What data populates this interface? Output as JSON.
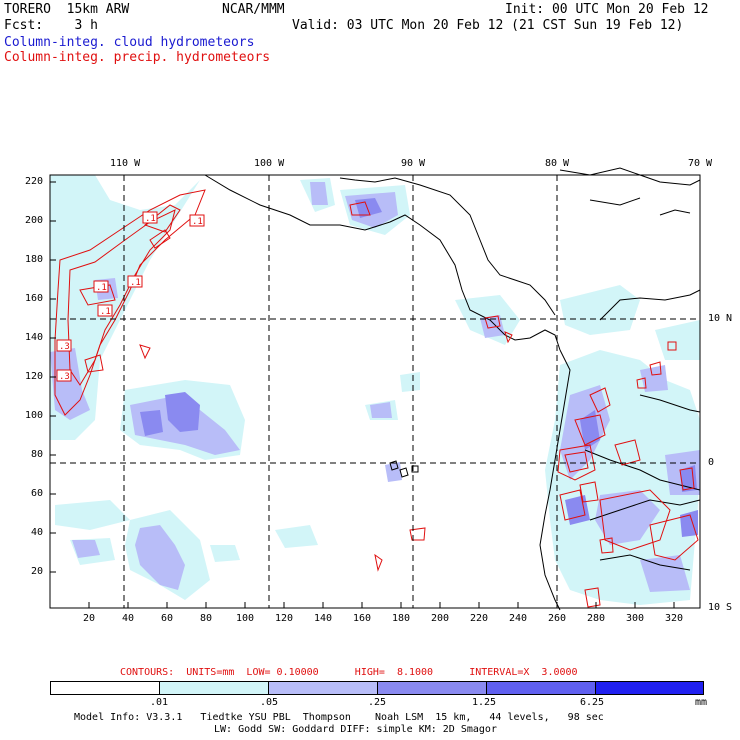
{
  "header": {
    "model": "TORERO  15km ARW",
    "center": "NCAR/MMM",
    "init": "Init: 00 UTC Mon 20 Feb 12",
    "fcst": "Fcst:    3 h",
    "valid": "Valid: 03 UTC Mon 20 Feb 12 (21 CST Sun 19 Feb 12)",
    "field_blue": "Column-integ. cloud hydrometeors",
    "field_red": "Column-integ. precip. hydrometeors"
  },
  "map": {
    "top_lon_labels": [
      "110 W",
      "100 W",
      "90 W",
      "80 W",
      "70 W"
    ],
    "right_lat_labels": [
      "10 N",
      "0",
      "10 S"
    ],
    "left_y_labels": [
      "220",
      "200",
      "180",
      "160",
      "140",
      "120",
      "100",
      "80",
      "60",
      "40",
      "20"
    ],
    "bottom_x_labels": [
      "20",
      "40",
      "60",
      "80",
      "100",
      "120",
      "140",
      "160",
      "180",
      "200",
      "220",
      "240",
      "260",
      "280",
      "300",
      "320"
    ],
    "contour_boxes": [
      ".1",
      ".1",
      ".1",
      ".1",
      ".1",
      ".3",
      ".3"
    ]
  },
  "contour_info": {
    "text": "CONTOURS:  UNITS=mm  LOW= 0.10000      HIGH=  8.1000      INTERVAL=X  3.0000"
  },
  "colorbar": {
    "ticks": [
      ".01",
      ".05",
      ".25",
      "1.25",
      "6.25"
    ],
    "unit": "mm",
    "colors": [
      "#ffffff",
      "#d2f5f8",
      "#b8bdf8",
      "#8a8af0",
      "#6060f0",
      "#2020f0"
    ]
  },
  "footer": {
    "line1": "Model Info: V3.3.1   Tiedtke YSU PBL  Thompson    Noah LSM  15 km,   44 levels,   98 sec",
    "line2": "LW: Godd SW: Goddard DIFF: simple KM: 2D Smagor"
  }
}
